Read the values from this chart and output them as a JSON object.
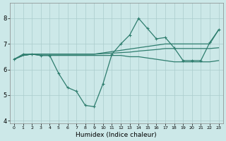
{
  "bg_color": "#cce8e8",
  "grid_color": "#aacccc",
  "line_color": "#2e7d6e",
  "xlabel": "Humidex (Indice chaleur)",
  "xlim": [
    -0.5,
    23.5
  ],
  "ylim": [
    3.9,
    8.6
  ],
  "yticks": [
    4,
    5,
    6,
    7,
    8
  ],
  "xticks": [
    0,
    1,
    2,
    3,
    4,
    5,
    6,
    7,
    8,
    9,
    10,
    11,
    12,
    13,
    14,
    15,
    16,
    17,
    18,
    19,
    20,
    21,
    22,
    23
  ],
  "line1": {
    "x": [
      0,
      1,
      2,
      3,
      4,
      5,
      6,
      7,
      8,
      9,
      10,
      11,
      12,
      13,
      14,
      15,
      16,
      17,
      18,
      19,
      20,
      21,
      22,
      23
    ],
    "y": [
      6.4,
      6.55,
      6.6,
      6.6,
      6.6,
      6.6,
      6.6,
      6.6,
      6.6,
      6.6,
      6.65,
      6.7,
      6.75,
      6.8,
      6.85,
      6.9,
      6.95,
      7.0,
      7.0,
      7.0,
      7.0,
      7.0,
      7.0,
      7.55
    ]
  },
  "line2": {
    "x": [
      0,
      1,
      2,
      3,
      4,
      5,
      6,
      7,
      8,
      9,
      10,
      11,
      12,
      13,
      14,
      15,
      16,
      17,
      18,
      19,
      20,
      21,
      22,
      23
    ],
    "y": [
      6.4,
      6.55,
      6.6,
      6.6,
      6.6,
      6.6,
      6.6,
      6.6,
      6.6,
      6.6,
      6.62,
      6.64,
      6.66,
      6.68,
      6.72,
      6.75,
      6.78,
      6.82,
      6.82,
      6.82,
      6.82,
      6.82,
      6.82,
      6.85
    ]
  },
  "line3": {
    "x": [
      0,
      1,
      2,
      3,
      4,
      5,
      6,
      7,
      8,
      9,
      10,
      11,
      12,
      13,
      14,
      15,
      16,
      17,
      18,
      19,
      20,
      21,
      22,
      23
    ],
    "y": [
      6.4,
      6.6,
      6.6,
      6.55,
      6.55,
      5.85,
      5.3,
      5.15,
      4.6,
      4.55,
      5.45,
      6.6,
      7.0,
      7.35,
      8.0,
      7.6,
      7.2,
      7.25,
      6.85,
      6.35,
      6.35,
      6.35,
      7.05,
      7.55
    ]
  },
  "line4": {
    "x": [
      0,
      1,
      2,
      3,
      4,
      5,
      6,
      7,
      8,
      9,
      10,
      11,
      12,
      13,
      14,
      15,
      16,
      17,
      18,
      19,
      20,
      21,
      22,
      23
    ],
    "y": [
      6.4,
      6.55,
      6.6,
      6.55,
      6.55,
      6.55,
      6.55,
      6.55,
      6.55,
      6.55,
      6.55,
      6.55,
      6.55,
      6.5,
      6.5,
      6.45,
      6.4,
      6.35,
      6.3,
      6.3,
      6.3,
      6.3,
      6.3,
      6.35
    ]
  }
}
